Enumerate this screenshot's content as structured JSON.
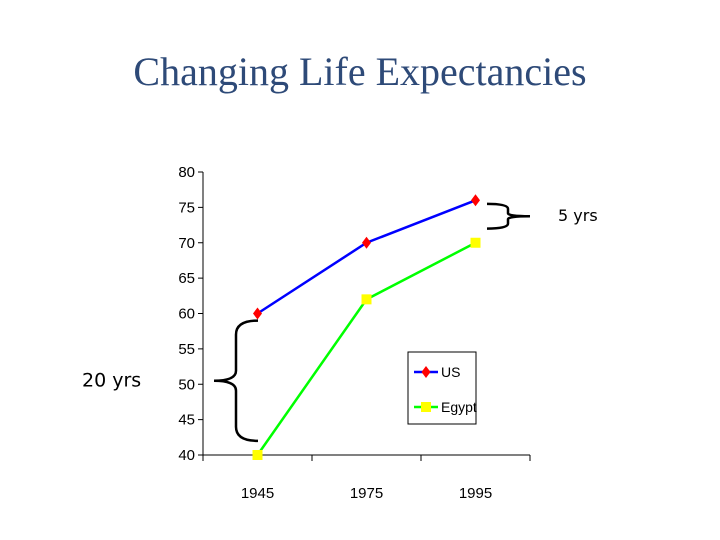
{
  "slide": {
    "title": "Changing Life Expectancies"
  },
  "chart_data": {
    "type": "line",
    "title": "",
    "xlabel": "",
    "ylabel": "",
    "categories": [
      "1945",
      "1975",
      "1995"
    ],
    "ylim": [
      40,
      80
    ],
    "yticks": [
      40,
      45,
      50,
      55,
      60,
      65,
      70,
      75,
      80
    ],
    "grid": false,
    "legend_position": "bottom-right",
    "series": [
      {
        "name": "US",
        "values": [
          60,
          70,
          76
        ],
        "color": "#0000ff",
        "marker": "diamond",
        "marker_color": "#ff0000"
      },
      {
        "name": "Egypt",
        "values": [
          40,
          62,
          70
        ],
        "color": "#00ff00",
        "marker": "square",
        "marker_color": "#ffff00"
      }
    ],
    "annotations": [
      {
        "label": "20 yrs",
        "category": "1945",
        "from": 42,
        "to": 59
      },
      {
        "label": "5 yrs",
        "category": "1995",
        "from": 72,
        "to": 75.5
      }
    ]
  }
}
